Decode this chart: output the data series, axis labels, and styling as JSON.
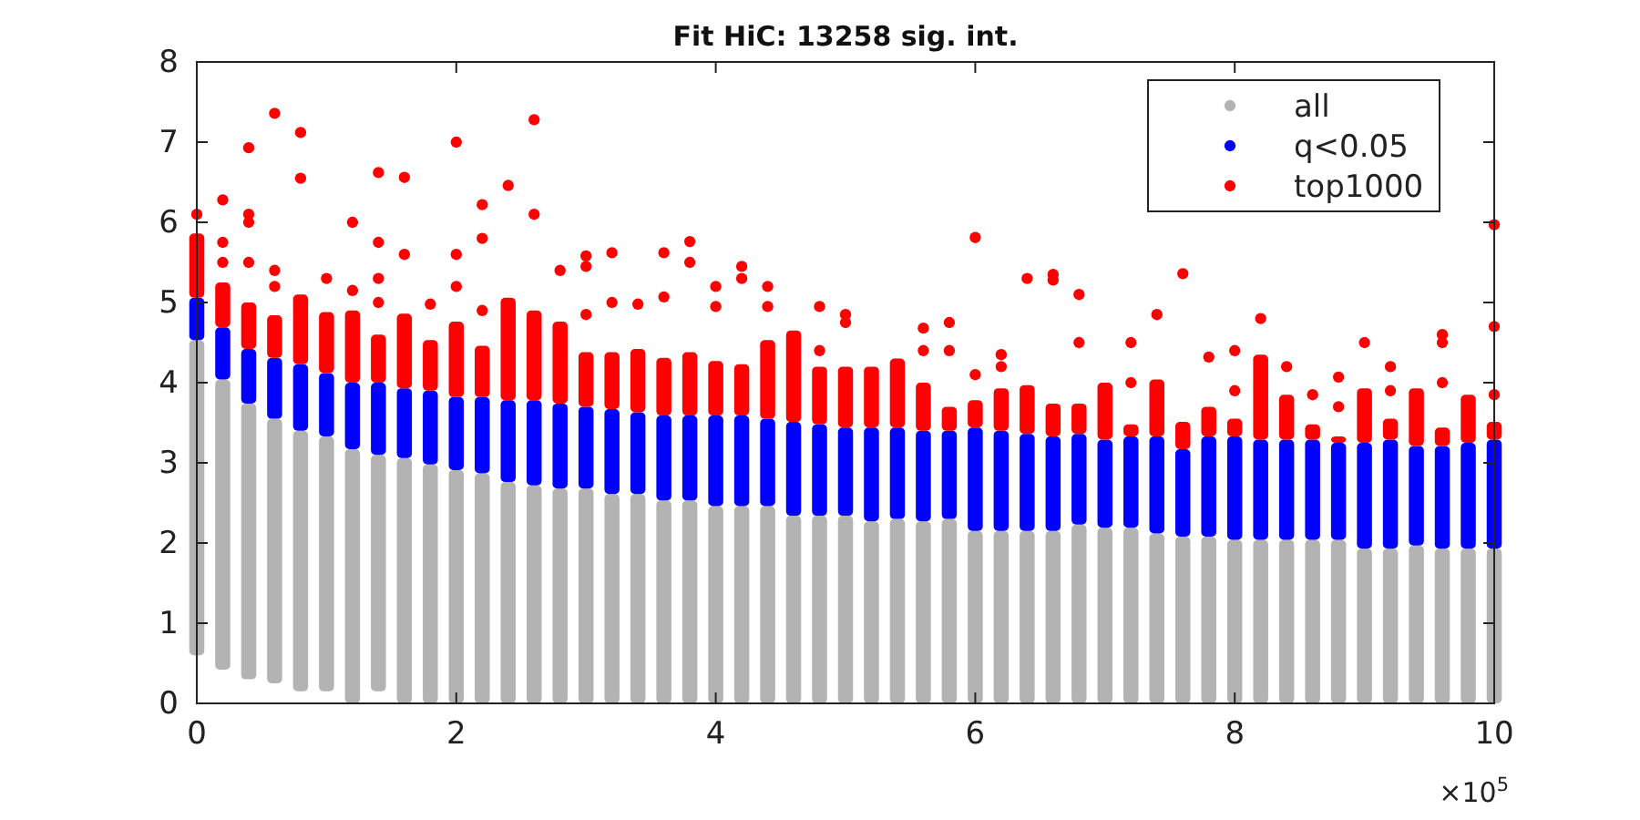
{
  "chart_data": {
    "type": "bar",
    "title": "Fit HiC: 13258 sig. int.",
    "x": [
      0,
      0.2,
      0.4,
      0.6,
      0.8,
      1.0,
      1.2,
      1.4,
      1.6,
      1.8,
      2.0,
      2.2,
      2.4,
      2.6,
      2.8,
      3.0,
      3.2,
      3.4,
      3.6,
      3.8,
      4.0,
      4.2,
      4.4,
      4.6,
      4.8,
      5.0,
      5.2,
      5.4,
      5.6,
      5.8,
      6.0,
      6.2,
      6.4,
      6.6,
      6.8,
      7.0,
      7.2,
      7.4,
      7.6,
      7.8,
      8.0,
      8.2,
      8.4,
      8.6,
      8.8,
      9.0,
      9.2,
      9.4,
      9.6,
      9.8,
      10.0
    ],
    "series": [
      {
        "name": "all",
        "color": "#b3b3b3",
        "base": [
          0.6,
          0.42,
          0.3,
          0.25,
          0.15,
          0.15,
          0,
          0.15,
          0,
          0,
          0,
          0,
          0,
          0,
          0,
          0,
          0,
          0,
          0,
          0,
          0,
          0,
          0,
          0,
          0,
          0,
          0,
          0,
          0,
          0,
          0,
          0,
          0,
          0,
          0,
          0,
          0,
          0,
          0,
          0,
          0,
          0,
          0,
          0,
          0,
          0,
          0,
          0,
          0,
          0,
          0
        ],
        "values": [
          3.93,
          3.62,
          3.44,
          3.3,
          3.25,
          3.18,
          3.17,
          2.95,
          3.06,
          2.98,
          2.91,
          2.87,
          2.76,
          2.72,
          2.68,
          2.68,
          2.61,
          2.61,
          2.53,
          2.53,
          2.46,
          2.46,
          2.46,
          2.34,
          2.34,
          2.34,
          2.27,
          2.3,
          2.27,
          2.3,
          2.15,
          2.15,
          2.15,
          2.15,
          2.23,
          2.19,
          2.19,
          2.12,
          2.08,
          2.08,
          2.04,
          2.04,
          2.04,
          2.04,
          2.04,
          1.93,
          1.93,
          1.97,
          1.93,
          1.93,
          1.93
        ]
      },
      {
        "name": "q<0.05",
        "color": "#0000ff",
        "base": [
          4.53,
          4.04,
          3.74,
          3.55,
          3.4,
          3.33,
          3.17,
          3.1,
          3.06,
          2.98,
          2.91,
          2.87,
          2.76,
          2.72,
          2.68,
          2.68,
          2.61,
          2.61,
          2.53,
          2.53,
          2.46,
          2.46,
          2.46,
          2.34,
          2.34,
          2.34,
          2.27,
          2.3,
          2.27,
          2.3,
          2.15,
          2.15,
          2.15,
          2.15,
          2.23,
          2.19,
          2.19,
          2.12,
          2.08,
          2.08,
          2.04,
          2.04,
          2.04,
          2.04,
          2.04,
          1.93,
          1.93,
          1.97,
          1.93,
          1.93,
          1.93
        ],
        "values": [
          0.53,
          0.65,
          0.68,
          0.76,
          0.83,
          0.79,
          0.83,
          0.9,
          0.87,
          0.92,
          0.91,
          0.95,
          1.02,
          1.06,
          1.06,
          1.02,
          1.06,
          1.02,
          1.06,
          1.06,
          1.13,
          1.13,
          1.09,
          1.17,
          1.14,
          1.1,
          1.17,
          1.14,
          1.13,
          1.1,
          1.29,
          1.25,
          1.21,
          1.18,
          1.13,
          1.1,
          1.14,
          1.21,
          1.09,
          1.25,
          1.29,
          1.25,
          1.25,
          1.25,
          1.21,
          1.32,
          1.36,
          1.24,
          1.28,
          1.32,
          1.36
        ]
      },
      {
        "name": "top1000",
        "color": "#ff0000",
        "base": [
          5.06,
          4.69,
          4.42,
          4.31,
          4.23,
          4.12,
          4.0,
          4.0,
          3.93,
          3.9,
          3.82,
          3.82,
          3.78,
          3.78,
          3.74,
          3.7,
          3.67,
          3.63,
          3.59,
          3.59,
          3.59,
          3.59,
          3.55,
          3.51,
          3.48,
          3.44,
          3.44,
          3.44,
          3.4,
          3.4,
          3.44,
          3.4,
          3.36,
          3.33,
          3.36,
          3.29,
          3.33,
          3.33,
          3.17,
          3.33,
          3.33,
          3.29,
          3.29,
          3.29,
          3.25,
          3.25,
          3.29,
          3.21,
          3.21,
          3.25,
          3.29
        ],
        "values": [
          0.8,
          0.56,
          0.58,
          0.53,
          0.87,
          0.76,
          0.9,
          0.6,
          0.93,
          0.63,
          0.94,
          0.64,
          1.28,
          1.12,
          1.02,
          0.68,
          0.71,
          0.79,
          0.72,
          0.79,
          0.68,
          0.64,
          0.98,
          1.14,
          0.72,
          0.76,
          0.76,
          0.86,
          0.6,
          0.3,
          0.34,
          0.53,
          0.61,
          0.41,
          0.38,
          0.71,
          0.15,
          0.71,
          0.34,
          0.37,
          0.22,
          1.06,
          0.56,
          0.19,
          0.08,
          0.68,
          0.26,
          0.72,
          0.23,
          0.6,
          0.22
        ]
      },
      {
        "type": "scatter",
        "color": "#ff0000",
        "x": [
          0,
          0.2,
          0.2,
          0.2,
          0.4,
          0.4,
          0.4,
          0.4,
          0.6,
          0.6,
          0.6,
          0.8,
          0.8,
          1.0,
          1.2,
          1.2,
          1.4,
          1.4,
          1.4,
          1.4,
          1.6,
          1.6,
          1.8,
          2.0,
          2.0,
          2.0,
          2.2,
          2.2,
          2.2,
          2.4,
          2.6,
          2.6,
          2.8,
          3.0,
          3.0,
          3.0,
          3.2,
          3.2,
          3.4,
          3.6,
          3.6,
          3.8,
          3.8,
          4.0,
          4.0,
          4.2,
          4.2,
          4.4,
          4.4,
          4.8,
          4.8,
          5.0,
          5.0,
          5.6,
          5.6,
          5.8,
          5.8,
          6.0,
          6.0,
          6.2,
          6.2,
          6.4,
          6.6,
          6.6,
          6.8,
          6.8,
          7.2,
          7.2,
          7.4,
          7.6,
          7.8,
          8.0,
          8.0,
          8.2,
          8.4,
          8.6,
          8.8,
          8.8,
          9.0,
          9.2,
          9.2,
          9.6,
          9.6,
          9.6,
          10.0,
          10.0,
          10.0
        ],
        "values": [
          6.1,
          5.5,
          5.75,
          6.28,
          5.5,
          6.0,
          6.1,
          6.93,
          5.2,
          5.4,
          7.36,
          6.55,
          7.12,
          5.3,
          5.15,
          6.0,
          5.0,
          5.3,
          5.75,
          6.62,
          5.6,
          6.56,
          4.98,
          5.2,
          5.6,
          7.0,
          4.9,
          5.8,
          6.22,
          6.46,
          6.1,
          7.28,
          5.4,
          4.85,
          5.45,
          5.58,
          5.0,
          5.62,
          4.98,
          5.07,
          5.62,
          5.5,
          5.76,
          4.95,
          5.2,
          5.3,
          5.45,
          4.95,
          5.2,
          4.4,
          4.95,
          4.75,
          4.85,
          4.4,
          4.68,
          4.4,
          4.75,
          4.1,
          5.81,
          4.2,
          4.35,
          5.3,
          5.28,
          5.35,
          4.5,
          5.1,
          4.0,
          4.5,
          4.85,
          5.36,
          4.32,
          3.9,
          4.4,
          4.8,
          4.2,
          3.85,
          3.7,
          4.07,
          4.5,
          3.9,
          4.2,
          4.0,
          4.5,
          4.6,
          3.85,
          4.7,
          5.97
        ]
      }
    ],
    "xlim": [
      0,
      10
    ],
    "xticks": [
      0,
      2,
      4,
      6,
      8,
      10
    ],
    "ylim": [
      0,
      8
    ],
    "yticks": [
      0,
      1,
      2,
      3,
      4,
      5,
      6,
      7,
      8
    ],
    "annotations": [
      "×10$^{5}$"
    ],
    "legend": "top right",
    "marker": "circle",
    "grid": false
  }
}
